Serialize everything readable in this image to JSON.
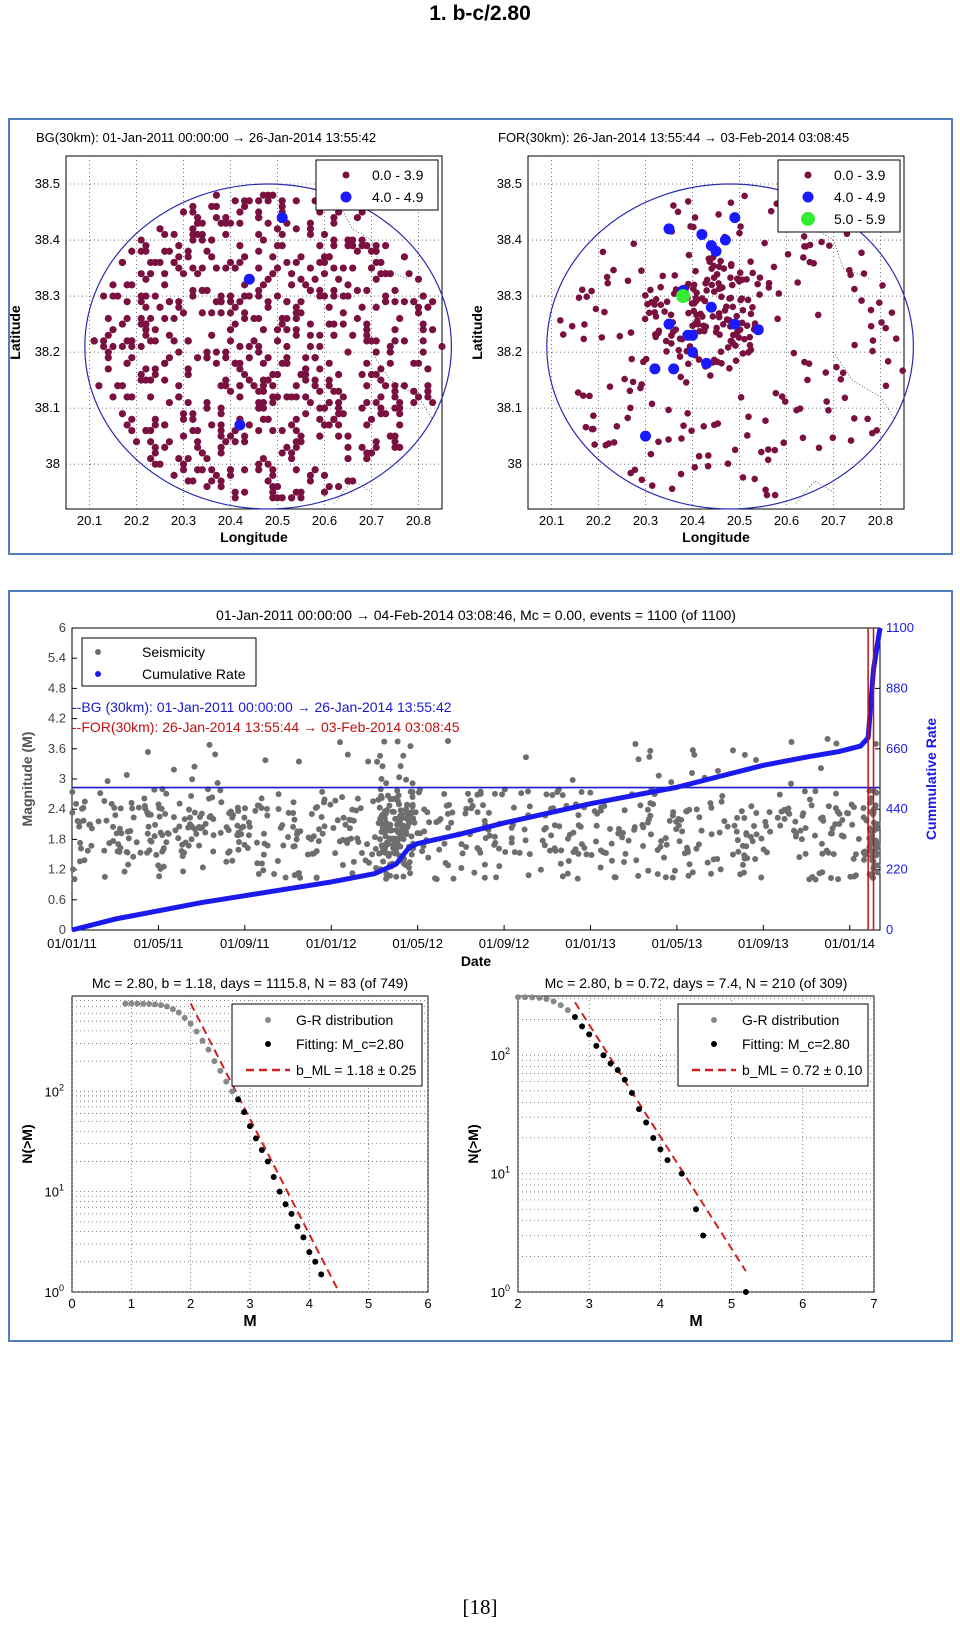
{
  "page": {
    "heading": "1.   b-c/2.80",
    "page_number": "[18]"
  },
  "colors": {
    "small_events": "#7a1040",
    "medium_events": "#1a1aff",
    "large_events": "#33ee33",
    "seismicity": "#6e6e6e",
    "cumulative": "#1a1aee",
    "for_marker": "#c01010",
    "fit_points": "#000000",
    "fit_line": "#d02020",
    "frame": "#4f7fbf"
  },
  "chart_data": [
    {
      "type": "scatter",
      "id": "bg_map",
      "title": "BG(30km): 01-Jan-2011 00:00:00 → 26-Jan-2014 13:55:42",
      "xlabel": "Longitude",
      "ylabel": "Latitude",
      "xlim": [
        20.05,
        20.85
      ],
      "ylim": [
        37.92,
        38.55
      ],
      "xticks": [
        "20.1",
        "20.2",
        "20.3",
        "20.4",
        "20.5",
        "20.6",
        "20.7",
        "20.8"
      ],
      "yticks": [
        "38",
        "38.1",
        "38.2",
        "38.3",
        "38.4",
        "38.5"
      ],
      "grid": true,
      "legend": [
        {
          "label": "0.0 - 3.9",
          "marker": "small"
        },
        {
          "label": "4.0 - 4.9",
          "marker": "medium"
        }
      ],
      "circle": {
        "center": [
          20.48,
          38.21
        ],
        "rx": 0.39,
        "ry": 0.29
      },
      "series": [
        {
          "name": "4.0 - 4.9",
          "x": [
            20.51,
            20.44,
            20.42
          ],
          "y": [
            38.44,
            38.33,
            38.07
          ]
        }
      ],
      "background_events_count": 1100
    },
    {
      "type": "scatter",
      "id": "for_map",
      "title": "FOR(30km): 26-Jan-2014 13:55:44 → 03-Feb-2014 03:08:45",
      "xlabel": "Longitude",
      "ylabel": "Latitude",
      "xlim": [
        20.05,
        20.85
      ],
      "ylim": [
        37.92,
        38.55
      ],
      "xticks": [
        "20.1",
        "20.2",
        "20.3",
        "20.4",
        "20.5",
        "20.6",
        "20.7",
        "20.8"
      ],
      "yticks": [
        "38",
        "38.1",
        "38.2",
        "38.3",
        "38.4",
        "38.5"
      ],
      "grid": true,
      "legend": [
        {
          "label": "0.0 - 3.9",
          "marker": "small"
        },
        {
          "label": "4.0 - 4.9",
          "marker": "medium"
        },
        {
          "label": "5.0 - 5.9",
          "marker": "large"
        }
      ],
      "circle": {
        "center": [
          20.48,
          38.21
        ],
        "rx": 0.39,
        "ry": 0.29
      },
      "series": [
        {
          "name": "4.0 - 4.9",
          "x": [
            20.35,
            20.42,
            20.44,
            20.45,
            20.47,
            20.49,
            20.38,
            20.35,
            20.39,
            20.4,
            20.44,
            20.49,
            20.54,
            20.4,
            20.43,
            20.32,
            20.36,
            20.3
          ],
          "y": [
            38.42,
            38.41,
            38.39,
            38.38,
            38.4,
            38.44,
            38.31,
            38.25,
            38.23,
            38.23,
            38.28,
            38.25,
            38.24,
            38.2,
            38.18,
            38.17,
            38.17,
            38.05
          ]
        },
        {
          "name": "5.0 - 5.9",
          "x": [
            20.38
          ],
          "y": [
            38.3
          ]
        }
      ],
      "aftershock_count": 309
    },
    {
      "type": "scatter",
      "id": "timeline",
      "title": "01-Jan-2011 00:00:00 → 04-Feb-2014 03:08:46, Mc = 0.00, events = 1100 (of 1100)",
      "xlabel": "Date",
      "ylabel": "Magnitude (M)",
      "ylabel_right": "Cummulative Rate",
      "xticks": [
        "01/01/11",
        "01/05/11",
        "01/09/11",
        "01/01/12",
        "01/05/12",
        "01/09/12",
        "01/01/13",
        "01/05/13",
        "01/09/13",
        "01/01/14"
      ],
      "xlim_months": [
        0,
        37.4
      ],
      "ylim": [
        0,
        6
      ],
      "yticks": [
        "0",
        "0.6",
        "1.2",
        "1.8",
        "2.4",
        "3",
        "3.6",
        "4.2",
        "4.8",
        "5.4",
        "6"
      ],
      "ylim_right": [
        0,
        1100
      ],
      "yticks_right": [
        "0",
        "220",
        "440",
        "660",
        "880",
        "1100"
      ],
      "legend": [
        {
          "label": "Seismicity",
          "marker": "gray-dot"
        },
        {
          "label": "Cumulative Rate",
          "marker": "blue-dot"
        }
      ],
      "annotations": [
        "--BG (30km): 01-Jan-2011 00:00:00 → 26-Jan-2014 13:55:42",
        "--FOR(30km): 26-Jan-2014 13:55:44 → 03-Feb-2014 03:08:45"
      ],
      "mc_line": 2.83,
      "for_window_months": [
        36.85,
        37.1
      ],
      "cumulative": {
        "x_months": [
          0,
          2,
          4,
          6,
          8,
          10,
          12,
          14,
          15,
          15.3,
          15.6,
          16,
          18,
          20,
          22,
          24,
          26,
          28,
          30,
          32,
          34,
          35.5,
          36.5,
          36.85,
          37.0,
          37.1,
          37.3,
          37.4
        ],
        "values": [
          0,
          40,
          70,
          100,
          125,
          150,
          175,
          205,
          240,
          270,
          300,
          315,
          350,
          390,
          425,
          460,
          490,
          520,
          560,
          600,
          630,
          650,
          670,
          700,
          850,
          950,
          1050,
          1100
        ]
      }
    },
    {
      "type": "scatter",
      "id": "gr_bg",
      "title": "Mc = 2.80, b = 1.18, days = 1115.8, N = 83 (of 749)",
      "xlabel": "M",
      "ylabel": "N(>M)",
      "xlim": [
        0,
        6
      ],
      "xticks": [
        "0",
        "1",
        "2",
        "3",
        "4",
        "5",
        "6"
      ],
      "ylim_log10": [
        0,
        2.95
      ],
      "yticks": [
        "10^0",
        "10^1",
        "10^2"
      ],
      "grid": true,
      "legend": [
        {
          "label": "G-R distribution",
          "marker": "gray-dot"
        },
        {
          "label": "Fitting: M_c=2.80",
          "marker": "black-dot"
        },
        {
          "label": "b_ML = 1.18 ± 0.25",
          "marker": "red-dash"
        }
      ],
      "gr_points": {
        "x": [
          0.9,
          1.0,
          1.1,
          1.2,
          1.3,
          1.4,
          1.5,
          1.6,
          1.7,
          1.8,
          1.9,
          2.0,
          2.1,
          2.2,
          2.3,
          2.4,
          2.5,
          2.6,
          2.7
        ],
        "y": [
          749,
          749,
          748,
          746,
          742,
          735,
          722,
          700,
          660,
          610,
          540,
          470,
          395,
          320,
          260,
          200,
          160,
          125,
          100
        ]
      },
      "fit_points": {
        "x": [
          2.8,
          2.9,
          3.0,
          3.1,
          3.2,
          3.3,
          3.4,
          3.5,
          3.6,
          3.7,
          3.8,
          3.9,
          4.0,
          4.1,
          4.2
        ],
        "y": [
          83,
          62,
          45,
          34,
          26,
          20,
          14,
          10,
          7.5,
          6,
          4.5,
          3.5,
          2.5,
          2,
          1.5
        ]
      },
      "fit_line": {
        "x": [
          2.0,
          4.5
        ],
        "y": [
          750,
          1
        ]
      }
    },
    {
      "type": "scatter",
      "id": "gr_for",
      "title": "Mc = 2.80, b = 0.72, days = 7.4, N = 210 (of 309)",
      "xlabel": "M",
      "ylabel": "N(>M)",
      "xlim": [
        2,
        7
      ],
      "xticks": [
        "2",
        "3",
        "4",
        "5",
        "6",
        "7"
      ],
      "ylim_log10": [
        0,
        2.5
      ],
      "yticks": [
        "10^0",
        "10^1",
        "10^2"
      ],
      "grid": true,
      "legend": [
        {
          "label": "G-R distribution",
          "marker": "gray-dot"
        },
        {
          "label": "Fitting: M_c=2.80",
          "marker": "black-dot"
        },
        {
          "label": "b_ML = 0.72 ± 0.10",
          "marker": "red-dash"
        }
      ],
      "gr_points": {
        "x": [
          2.0,
          2.1,
          2.2,
          2.3,
          2.4,
          2.5,
          2.6,
          2.7
        ],
        "y": [
          309,
          309,
          308,
          305,
          298,
          285,
          265,
          240
        ]
      },
      "fit_points": {
        "x": [
          2.8,
          2.9,
          3.0,
          3.1,
          3.2,
          3.3,
          3.4,
          3.5,
          3.6,
          3.7,
          3.8,
          3.9,
          4.0,
          4.1,
          4.3,
          4.5,
          4.6,
          5.2
        ],
        "y": [
          210,
          175,
          150,
          120,
          100,
          85,
          75,
          62,
          48,
          35,
          27,
          20,
          16,
          13,
          10,
          5,
          3,
          1
        ]
      },
      "fit_line": {
        "x": [
          2.8,
          5.2
        ],
        "y": [
          280,
          1.5
        ]
      }
    }
  ]
}
